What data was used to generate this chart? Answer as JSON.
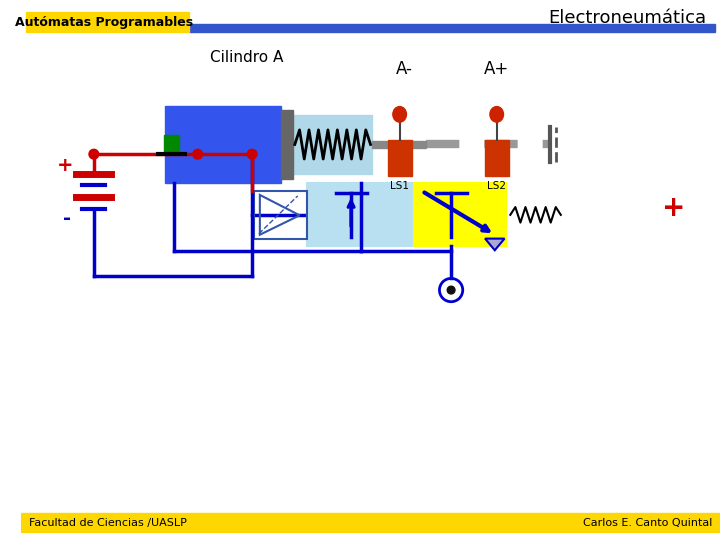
{
  "title": "Electroneumática",
  "subtitle": "Autómatas Programables",
  "cylinder_label": "Cilindro A",
  "label_aminus": "A-",
  "label_aplus": "A+",
  "label_ls1": "LS1",
  "label_ls2": "LS2",
  "label_plus": "+",
  "label_minus": "-",
  "label_plus_right": "+",
  "footer_left": "Facultad de Ciencias /UASLP",
  "footer_right": "Carlos E. Canto Quintal",
  "bg_color": "#ffffff",
  "header_bar_color": "#3355cc",
  "header_yellow_color": "#FFD700",
  "cylinder_body_color": "#3355ee",
  "cylinder_cap_color": "#666666",
  "spring_color": "#000000",
  "spring_bg_color": "#b0d8e8",
  "rod_color": "#888888",
  "ls_body_color": "#cc3300",
  "ls_dot_color": "#cc2200",
  "valve_left_color": "#b8e0f0",
  "valve_right_color": "#ffff00",
  "valve_border_color": "#0000aa",
  "wire_red": "#cc0000",
  "wire_blue": "#0000cc",
  "button_color": "#008800",
  "footer_bar_color": "#FFD700"
}
